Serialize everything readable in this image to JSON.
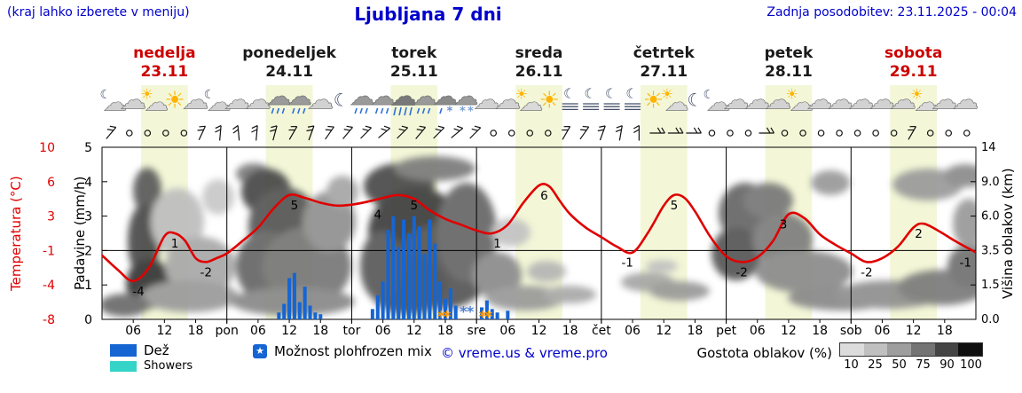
{
  "header": {
    "note": "(kraj lahko izberete v meniju)",
    "title": "Ljubljana 7 dni",
    "updated": "Zadnja posodobitev: 23.11.2025 - 00:04"
  },
  "days": [
    {
      "name": "nedelja",
      "date": "23.11",
      "accent": true
    },
    {
      "name": "ponedeljek",
      "date": "24.11",
      "accent": false
    },
    {
      "name": "torek",
      "date": "25.11",
      "accent": false
    },
    {
      "name": "sreda",
      "date": "26.11",
      "accent": false
    },
    {
      "name": "četrtek",
      "date": "27.11",
      "accent": false
    },
    {
      "name": "petek",
      "date": "28.11",
      "accent": false
    },
    {
      "name": "sobota",
      "date": "29.11",
      "accent": true
    }
  ],
  "axes": {
    "temperature": {
      "title": "Temperatura (°C)",
      "ticks": [
        "-8",
        "-4",
        "-1",
        "3",
        "6",
        "10"
      ]
    },
    "precip": {
      "title": "Padavine (mm/h)",
      "ticks": [
        "0",
        "1",
        "2",
        "3",
        "4",
        "5"
      ]
    },
    "cloud_height": {
      "title": "Višina oblakov (km)",
      "ticks": [
        "0.0",
        "1.5",
        "3.5",
        "6.0",
        "9.0",
        "14"
      ]
    },
    "x_labels": [
      {
        "h": 6,
        "t": "06"
      },
      {
        "h": 12,
        "t": "12"
      },
      {
        "h": 18,
        "t": "18"
      },
      {
        "h": 24,
        "t": "pon"
      },
      {
        "h": 30,
        "t": "06"
      },
      {
        "h": 36,
        "t": "12"
      },
      {
        "h": 42,
        "t": "18"
      },
      {
        "h": 48,
        "t": "tor"
      },
      {
        "h": 54,
        "t": "06"
      },
      {
        "h": 60,
        "t": "12"
      },
      {
        "h": 66,
        "t": "18"
      },
      {
        "h": 72,
        "t": "sre"
      },
      {
        "h": 78,
        "t": "06"
      },
      {
        "h": 84,
        "t": "12"
      },
      {
        "h": 90,
        "t": "18"
      },
      {
        "h": 96,
        "t": "čet"
      },
      {
        "h": 102,
        "t": "06"
      },
      {
        "h": 108,
        "t": "12"
      },
      {
        "h": 114,
        "t": "18"
      },
      {
        "h": 120,
        "t": "pet"
      },
      {
        "h": 126,
        "t": "06"
      },
      {
        "h": 132,
        "t": "12"
      },
      {
        "h": 138,
        "t": "18"
      },
      {
        "h": 144,
        "t": "sob"
      },
      {
        "h": 150,
        "t": "06"
      },
      {
        "h": 156,
        "t": "12"
      },
      {
        "h": 162,
        "t": "18"
      }
    ]
  },
  "legend": {
    "rain": "Dež",
    "showers": "Showers",
    "chance": "Možnost ploh",
    "frozen": "frozen mix",
    "copyright": "© vreme.us & vreme.pro",
    "cloud_density": "Gostota oblakov (%)",
    "density_ticks": [
      "10",
      "25",
      "50",
      "75",
      "90",
      "100"
    ],
    "density_colors": [
      "#dcdcdc",
      "#c0c0c0",
      "#9e9e9e",
      "#747474",
      "#454545",
      "#0f0f0f"
    ],
    "star_glyph": "★"
  },
  "chart_data": {
    "type": "meteogram (temperature line + precipitation bars + cloud-density shading)",
    "x_unit": "hours from 23.11.2025 00:00, total 168 h (7 days)",
    "y_precip_range_mm_h": [
      0,
      5
    ],
    "y_temp_range_c": [
      -8,
      10
    ],
    "y_cloud_height_km_ticks": [
      0.0,
      1.5,
      3.5,
      6.0,
      9.0,
      14
    ],
    "daylight": {
      "sunrise_h": 7.5,
      "sunset_h": 16.5
    },
    "temperature_c": [
      [
        0,
        -1.3
      ],
      [
        3,
        -2.8
      ],
      [
        6,
        -4
      ],
      [
        9,
        -2.6
      ],
      [
        12,
        0.7
      ],
      [
        14,
        1
      ],
      [
        16,
        0.2
      ],
      [
        18,
        -1.6
      ],
      [
        20,
        -2
      ],
      [
        22,
        -1.6
      ],
      [
        24,
        -1.1
      ],
      [
        27,
        0.2
      ],
      [
        30,
        1.6
      ],
      [
        33,
        3.6
      ],
      [
        36,
        5
      ],
      [
        39,
        4.7
      ],
      [
        42,
        4.2
      ],
      [
        45,
        3.9
      ],
      [
        48,
        4
      ],
      [
        51,
        4.3
      ],
      [
        54,
        4.7
      ],
      [
        57,
        5
      ],
      [
        60,
        4.6
      ],
      [
        63,
        3.4
      ],
      [
        66,
        2.5
      ],
      [
        69,
        1.9
      ],
      [
        72,
        1.3
      ],
      [
        75,
        1
      ],
      [
        78,
        1.9
      ],
      [
        81,
        4.2
      ],
      [
        84,
        6
      ],
      [
        86,
        5.9
      ],
      [
        88,
        4.4
      ],
      [
        90,
        3
      ],
      [
        93,
        1.6
      ],
      [
        96,
        0.6
      ],
      [
        99,
        -0.4
      ],
      [
        102,
        -1
      ],
      [
        105,
        1.1
      ],
      [
        108,
        3.9
      ],
      [
        110,
        5
      ],
      [
        112,
        4.7
      ],
      [
        114,
        3.3
      ],
      [
        117,
        0.6
      ],
      [
        120,
        -1.4
      ],
      [
        123,
        -2
      ],
      [
        126,
        -1.5
      ],
      [
        129,
        0.2
      ],
      [
        132,
        3
      ],
      [
        135,
        2.6
      ],
      [
        138,
        0.9
      ],
      [
        141,
        -0.2
      ],
      [
        144,
        -1.1
      ],
      [
        147,
        -2
      ],
      [
        150,
        -1.6
      ],
      [
        153,
        -0.4
      ],
      [
        156,
        1.6
      ],
      [
        158,
        2
      ],
      [
        161,
        1.2
      ],
      [
        164,
        0.2
      ],
      [
        168,
        -1
      ]
    ],
    "temperature_labels": [
      {
        "h": 7,
        "v": "-4"
      },
      {
        "h": 14,
        "v": "1"
      },
      {
        "h": 20,
        "v": "-2"
      },
      {
        "h": 37,
        "v": "5"
      },
      {
        "h": 53,
        "v": "4"
      },
      {
        "h": 60,
        "v": "5"
      },
      {
        "h": 76,
        "v": "1"
      },
      {
        "h": 85,
        "v": "6"
      },
      {
        "h": 101,
        "v": "-1"
      },
      {
        "h": 110,
        "v": "5"
      },
      {
        "h": 123,
        "v": "-2"
      },
      {
        "h": 131,
        "v": "3"
      },
      {
        "h": 147,
        "v": "-2"
      },
      {
        "h": 157,
        "v": "2"
      },
      {
        "h": 166,
        "v": "-1"
      }
    ],
    "precipitation_mm_h": [
      [
        34,
        0.2
      ],
      [
        35,
        0.45
      ],
      [
        36,
        1.2
      ],
      [
        37,
        1.35
      ],
      [
        38,
        0.5
      ],
      [
        39,
        0.95
      ],
      [
        40,
        0.4
      ],
      [
        41,
        0.2
      ],
      [
        42,
        0.15
      ],
      [
        52,
        0.3
      ],
      [
        53,
        0.7
      ],
      [
        54,
        1.1
      ],
      [
        55,
        2.6
      ],
      [
        56,
        3.0
      ],
      [
        57,
        2.1
      ],
      [
        58,
        2.9
      ],
      [
        59,
        2.5
      ],
      [
        60,
        3.0
      ],
      [
        61,
        2.7
      ],
      [
        62,
        1.9
      ],
      [
        63,
        2.9
      ],
      [
        64,
        2.2
      ],
      [
        65,
        1.1
      ],
      [
        66,
        0.6
      ],
      [
        67,
        0.9
      ],
      [
        68,
        0.4
      ],
      [
        73,
        0.35
      ],
      [
        74,
        0.55
      ],
      [
        75,
        0.3
      ],
      [
        76,
        0.2
      ],
      [
        78,
        0.25
      ]
    ],
    "frozen_mix_markers_h": [
      65.2,
      66.3,
      73.2,
      74.3
    ],
    "snow_markers_h": [
      69.5,
      70.8
    ],
    "weather_icons": [
      "moon-cloud",
      "cloud",
      "sun-cloud",
      "sun",
      "cloud",
      "moon-cloud",
      "cloud",
      "cloud",
      "rain",
      "rain",
      "cloud",
      "moon",
      "rain",
      "rain",
      "rain-heavy",
      "rain",
      "sleet",
      "snow",
      "cloud",
      "cloud",
      "sun-cloud",
      "sun",
      "moon-fog",
      "moon-fog",
      "moon-fog",
      "moon-fog",
      "sun",
      "sun-cloud",
      "moon",
      "moon-cloud",
      "cloud",
      "cloud",
      "cloud",
      "sun-cloud",
      "cloud",
      "cloud",
      "cloud",
      "cloud",
      "cloud",
      "sun-cloud",
      "cloud",
      "cloud"
    ],
    "wind": [
      "b40",
      "o",
      "o",
      "o",
      "o",
      "b25",
      "b5",
      "b-5",
      "b5",
      "b15",
      "b30",
      "b20",
      "b35",
      "b40",
      "b45",
      "b50",
      "b45",
      "b40",
      "b45",
      "b50",
      "b45",
      "o",
      "o",
      "o",
      "o",
      "b30",
      "b35",
      "b20",
      "b10",
      "b0",
      "h",
      "h",
      "h",
      "o",
      "o",
      "o",
      "h",
      "o",
      "o",
      "o",
      "o",
      "o",
      "o",
      "o",
      "b30",
      "o",
      "o",
      "o"
    ],
    "cloud_blobs": [
      [
        166,
        215,
        16,
        26,
        "#5a5a5a"
      ],
      [
        162,
        272,
        18,
        42,
        "#4a4a4a"
      ],
      [
        168,
        320,
        26,
        28,
        "#363636"
      ],
      [
        200,
        250,
        30,
        38,
        "#bdbdbd"
      ],
      [
        226,
        300,
        40,
        33,
        "#a8a8a8"
      ],
      [
        214,
        334,
        55,
        18,
        "#9a9a9a"
      ],
      [
        246,
        222,
        18,
        20,
        "#c8c8c8"
      ],
      [
        140,
        344,
        28,
        13,
        "#6a6a6a"
      ],
      [
        286,
        196,
        20,
        12,
        "#7a7a7a"
      ],
      [
        300,
        216,
        28,
        26,
        "#474747"
      ],
      [
        320,
        255,
        40,
        44,
        "#555555"
      ],
      [
        300,
        300,
        34,
        40,
        "#666666"
      ],
      [
        346,
        300,
        50,
        44,
        "#777777"
      ],
      [
        330,
        340,
        70,
        16,
        "#888888"
      ],
      [
        371,
        250,
        30,
        34,
        "#909090"
      ],
      [
        386,
        216,
        18,
        18,
        "#a5a5a5"
      ],
      [
        450,
        210,
        40,
        26,
        "#4a4a4a"
      ],
      [
        470,
        262,
        55,
        50,
        "#3d3d3d"
      ],
      [
        500,
        300,
        55,
        48,
        "#555555"
      ],
      [
        460,
        322,
        45,
        32,
        "#4f4f4f"
      ],
      [
        526,
        262,
        34,
        56,
        "#666666"
      ],
      [
        490,
        190,
        46,
        14,
        "#7a7a7a"
      ],
      [
        430,
        300,
        24,
        40,
        "#585858"
      ],
      [
        560,
        310,
        28,
        26,
        "#8a8a8a"
      ],
      [
        592,
        336,
        45,
        14,
        "#999999"
      ],
      [
        576,
        262,
        22,
        16,
        "#c2c2c2"
      ],
      [
        616,
        306,
        22,
        12,
        "#b5b5b5"
      ],
      [
        642,
        332,
        30,
        10,
        "#a8a8a8"
      ],
      [
        730,
        318,
        30,
        11,
        "#a5a5a5"
      ],
      [
        766,
        328,
        34,
        11,
        "#989898"
      ],
      [
        746,
        300,
        18,
        7,
        "#c0c0c0"
      ],
      [
        840,
        240,
        30,
        34,
        "#666666"
      ],
      [
        830,
        286,
        28,
        30,
        "#555555"
      ],
      [
        866,
        226,
        28,
        20,
        "#777777"
      ],
      [
        882,
        270,
        34,
        30,
        "#7d7d7d"
      ],
      [
        906,
        306,
        55,
        24,
        "#8a8a8a"
      ],
      [
        936,
        206,
        22,
        14,
        "#999999"
      ],
      [
        948,
        336,
        60,
        14,
        "#888888"
      ],
      [
        1002,
        332,
        60,
        16,
        "#8f8f8f"
      ],
      [
        1062,
        324,
        50,
        20,
        "#7a7a7a"
      ],
      [
        1092,
        300,
        24,
        24,
        "#6f6f6f"
      ],
      [
        1046,
        208,
        40,
        18,
        "#9a9a9a"
      ],
      [
        1088,
        198,
        24,
        13,
        "#8a8a8a"
      ],
      [
        1092,
        252,
        18,
        28,
        "#999999"
      ]
    ],
    "colors": {
      "temp_line": "#e00000",
      "rain_bar": "#1565d3",
      "shower_bar": "#35d4c8",
      "frozen_star": "#ff9900",
      "snow_mark": "#4a7fd4",
      "daylight_band": "#f3f7d7",
      "header_text": "#0000cc",
      "accent_day": "#cc0000"
    }
  }
}
